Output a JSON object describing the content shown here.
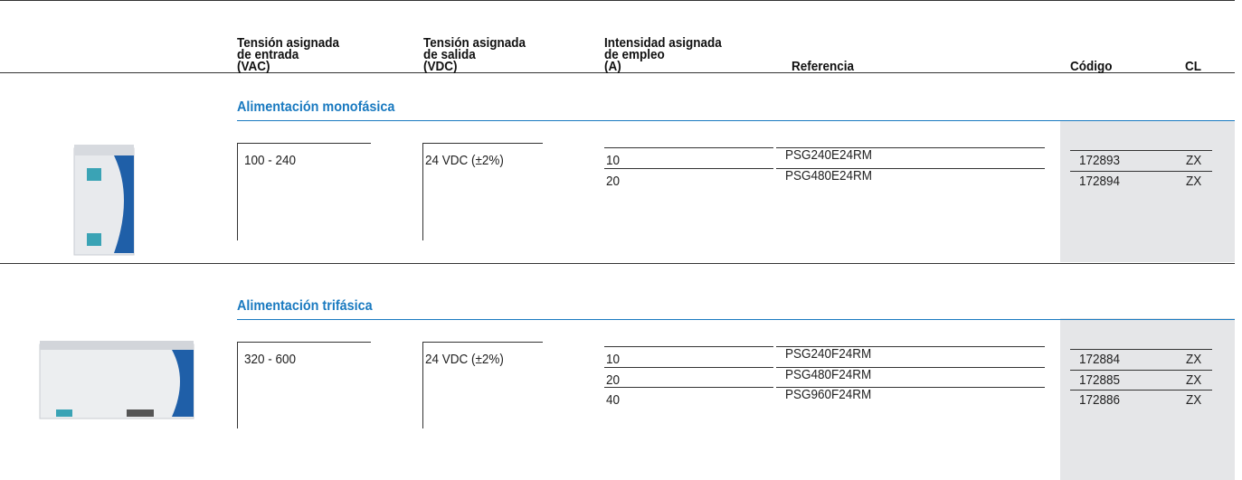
{
  "headers": [
    {
      "lines": [
        "Tensión asignada",
        "de entrada",
        "(VAC)"
      ]
    },
    {
      "lines": [
        "Tensión asignada",
        "de salida",
        "(VDC)"
      ]
    },
    {
      "lines": [
        "Intensidad asignada",
        "de empleo",
        "(A)"
      ]
    },
    {
      "lines": [
        "Referencia"
      ]
    },
    {
      "lines": [
        "Código"
      ]
    },
    {
      "lines": [
        "CL"
      ]
    }
  ],
  "sections": [
    {
      "title": "Alimentación monofásica",
      "input": "100 - 240",
      "output": "24 VDC (±2%)",
      "rows": [
        {
          "current": "10",
          "reference": "PSG240E24RM",
          "code": "172893",
          "cl": "ZX"
        },
        {
          "current": "20",
          "reference": "PSG480E24RM",
          "code": "172894",
          "cl": "ZX"
        }
      ]
    },
    {
      "title": "Alimentación trifásica",
      "input": "320 - 600",
      "output": "24 VDC (±2%)",
      "rows": [
        {
          "current": "10",
          "reference": "PSG240F24RM",
          "code": "172884",
          "cl": "ZX"
        },
        {
          "current": "20",
          "reference": "PSG480F24RM",
          "code": "172885",
          "cl": "ZX"
        },
        {
          "current": "40",
          "reference": "PSG960F24RM",
          "code": "172886",
          "cl": "ZX"
        }
      ]
    }
  ]
}
